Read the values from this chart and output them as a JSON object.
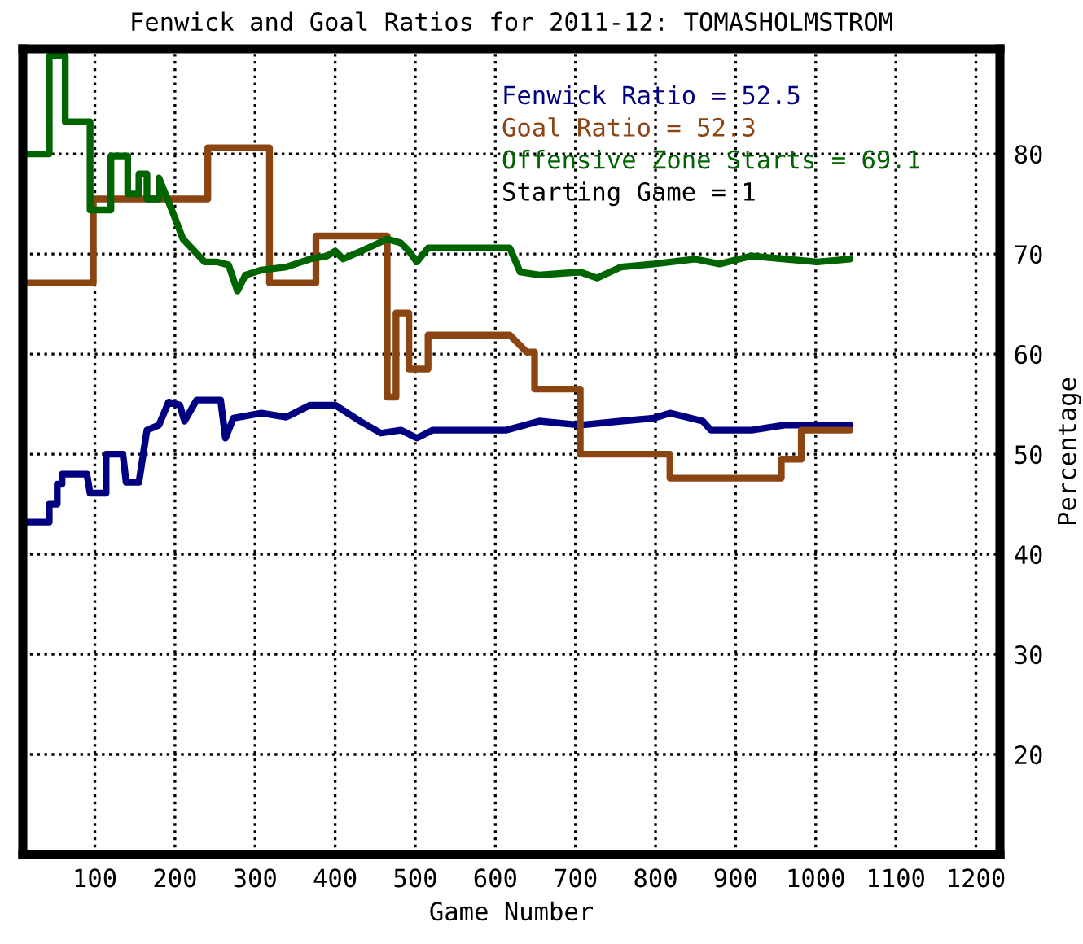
{
  "chart_data": {
    "type": "line",
    "title": "Fenwick and Goal Ratios for 2011-12: TOMASHOLMSTROM",
    "xlabel": "Game Number",
    "ylabel": "Percentage",
    "xlim": [
      10,
      1230
    ],
    "xticks": [
      100,
      200,
      300,
      400,
      500,
      600,
      700,
      800,
      900,
      1000,
      1100,
      1200
    ],
    "ylim": [
      10,
      90.5
    ],
    "yticks": [
      20,
      30,
      40,
      50,
      60,
      70,
      80
    ],
    "grid": true,
    "legend": "top right",
    "marker": "none",
    "line_style": "solid",
    "annotations": [
      "Starting Game = 1"
    ],
    "series": [
      {
        "name": "Fenwick Ratio = 52.5",
        "color": "#000080",
        "x": [
          10,
          10,
          43,
          43,
          53,
          53,
          59,
          59,
          90,
          94,
          114,
          114,
          135,
          139,
          155,
          165,
          180,
          192,
          206,
          212,
          227,
          257,
          263,
          273,
          308,
          339,
          369,
          400,
          431,
          457,
          482,
          502,
          522,
          614,
          655,
          706,
          757,
          798,
          818,
          859,
          869,
          920,
          961,
          1043
        ],
        "values": [
          27,
          43.2,
          43.2,
          45,
          45,
          47,
          47,
          48,
          48,
          46.1,
          46.1,
          50,
          50,
          47.2,
          47.2,
          52.4,
          52.9,
          55.2,
          54.9,
          53.3,
          55.4,
          55.4,
          51.6,
          53.6,
          54.1,
          53.7,
          54.9,
          54.9,
          53.3,
          52.1,
          52.4,
          51.6,
          52.4,
          52.4,
          53.3,
          52.9,
          53.3,
          53.6,
          54.1,
          53.3,
          52.4,
          52.4,
          52.9,
          52.9
        ]
      },
      {
        "name": "Goal Ratio = 52.3",
        "color": "#8b4513",
        "x": [
          10,
          98,
          98,
          241,
          241,
          318,
          318,
          376,
          376,
          465,
          465,
          476,
          476,
          492,
          492,
          516,
          516,
          618,
          639,
          649,
          649,
          706,
          706,
          818,
          818,
          957,
          957,
          982,
          982,
          1043
        ],
        "values": [
          67.1,
          67.1,
          75.5,
          75.5,
          80.6,
          80.6,
          67.1,
          67.1,
          71.8,
          71.8,
          55.7,
          55.7,
          64.1,
          64.1,
          58.5,
          58.5,
          61.9,
          61.9,
          60.2,
          60.2,
          56.5,
          56.5,
          50,
          50,
          47.6,
          47.6,
          49.5,
          49.5,
          52.4,
          52.4
        ]
      },
      {
        "name": "Offensive Zone Starts = 69.1",
        "color": "#006400",
        "x": [
          10,
          43,
          43,
          63,
          63,
          94,
          94,
          120,
          120,
          141,
          141,
          155,
          155,
          165,
          165,
          180,
          180,
          192,
          200,
          210,
          237,
          253,
          267,
          278,
          288,
          308,
          339,
          369,
          390,
          400,
          410,
          441,
          465,
          482,
          492,
          502,
          516,
          573,
          618,
          631,
          655,
          706,
          727,
          757,
          798,
          849,
          880,
          920,
          961,
          1002,
          1043
        ],
        "values": [
          80,
          80,
          89.8,
          89.8,
          83.2,
          83.2,
          74.4,
          74.4,
          79.8,
          79.8,
          76,
          76,
          78,
          78,
          75.5,
          75.5,
          77.6,
          75.2,
          73.6,
          71.5,
          69.2,
          69.2,
          68.9,
          66.3,
          67.9,
          68.4,
          68.7,
          69.5,
          69.8,
          70.3,
          69.5,
          70.6,
          71.5,
          71.1,
          70.3,
          69.2,
          70.6,
          70.6,
          70.6,
          68.2,
          67.9,
          68.2,
          67.6,
          68.7,
          69.0,
          69.5,
          69.0,
          69.8,
          69.5,
          69.2,
          69.5
        ]
      }
    ]
  }
}
